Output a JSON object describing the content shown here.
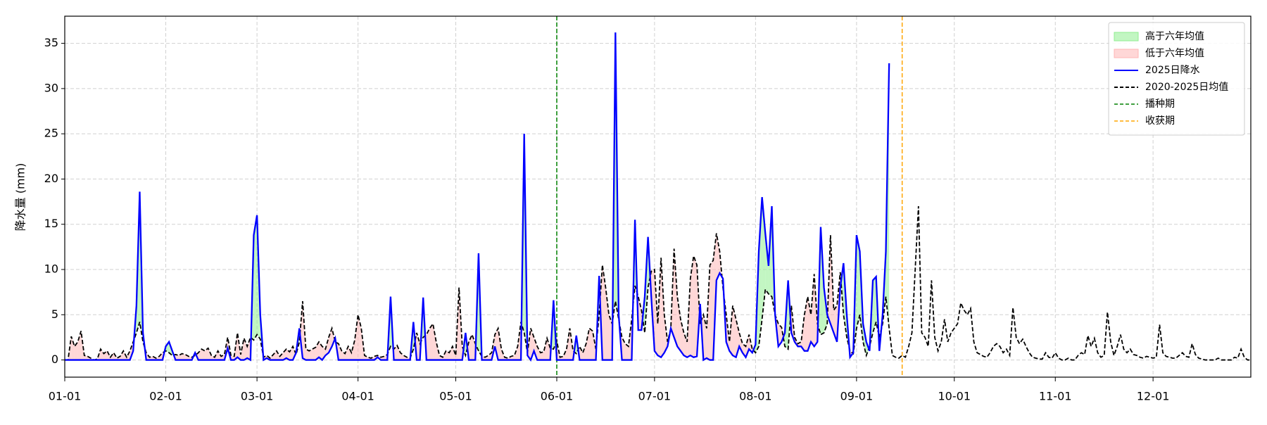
{
  "chart_data": {
    "type": "line",
    "ylabel": "降水量 (mm)",
    "x": [
      "01-01",
      "01-02",
      "01-03",
      "01-04",
      "01-05",
      "01-06",
      "01-07",
      "01-08",
      "01-09",
      "01-10",
      "01-11",
      "01-12",
      "01-13",
      "01-14",
      "01-15",
      "01-16",
      "01-17",
      "01-18",
      "01-19",
      "01-20",
      "01-21",
      "01-22",
      "01-23",
      "01-24",
      "01-25",
      "01-26",
      "01-27",
      "01-28",
      "01-29",
      "01-30",
      "01-31",
      "02-01",
      "02-02",
      "02-03",
      "02-04",
      "02-05",
      "02-06",
      "02-07",
      "02-08",
      "02-09",
      "02-10",
      "02-11",
      "02-12",
      "02-13",
      "02-14",
      "02-15",
      "02-16",
      "02-17",
      "02-18",
      "02-19",
      "02-20",
      "02-21",
      "02-22",
      "02-23",
      "02-24",
      "02-25",
      "02-26",
      "02-27",
      "02-28",
      "03-01",
      "03-02",
      "03-03",
      "03-04",
      "03-05",
      "03-06",
      "03-07",
      "03-08",
      "03-09",
      "03-10",
      "03-11",
      "03-12",
      "03-13",
      "03-14",
      "03-15",
      "03-16",
      "03-17",
      "03-18",
      "03-19",
      "03-20",
      "03-21",
      "03-22",
      "03-23",
      "03-24",
      "03-25",
      "03-26",
      "03-27",
      "03-28",
      "03-29",
      "03-30",
      "03-31",
      "04-01",
      "04-02",
      "04-03",
      "04-04",
      "04-05",
      "04-06",
      "04-07",
      "04-08",
      "04-09",
      "04-10",
      "04-11",
      "04-12",
      "04-13",
      "04-14",
      "04-15",
      "04-16",
      "04-17",
      "04-18",
      "04-19",
      "04-20",
      "04-21",
      "04-22",
      "04-23",
      "04-24",
      "04-25",
      "04-26",
      "04-27",
      "04-28",
      "04-29",
      "04-30",
      "05-01",
      "05-02",
      "05-03",
      "05-04",
      "05-05",
      "05-06",
      "05-07",
      "05-08",
      "05-09",
      "05-10",
      "05-11",
      "05-12",
      "05-13",
      "05-14",
      "05-15",
      "05-16",
      "05-17",
      "05-18",
      "05-19",
      "05-20",
      "05-21",
      "05-22",
      "05-23",
      "05-24",
      "05-25",
      "05-26",
      "05-27",
      "05-28",
      "05-29",
      "05-30",
      "05-31",
      "06-01",
      "06-02",
      "06-03",
      "06-04",
      "06-05",
      "06-06",
      "06-07",
      "06-08",
      "06-09",
      "06-10",
      "06-11",
      "06-12",
      "06-13",
      "06-14",
      "06-15",
      "06-16",
      "06-17",
      "06-18",
      "06-19",
      "06-20",
      "06-21",
      "06-22",
      "06-23",
      "06-24",
      "06-25",
      "06-26",
      "06-27",
      "06-28",
      "06-29",
      "06-30",
      "07-01",
      "07-02",
      "07-03",
      "07-04",
      "07-05",
      "07-06",
      "07-07",
      "07-08",
      "07-09",
      "07-10",
      "07-11",
      "07-12",
      "07-13",
      "07-14",
      "07-15",
      "07-16",
      "07-17",
      "07-18",
      "07-19",
      "07-20",
      "07-21",
      "07-22",
      "07-23",
      "07-24",
      "07-25",
      "07-26",
      "07-27",
      "07-28",
      "07-29",
      "07-30",
      "07-31",
      "08-01",
      "08-02",
      "08-03",
      "08-04",
      "08-05",
      "08-06",
      "08-07",
      "08-08",
      "08-09",
      "08-10",
      "08-11",
      "08-12",
      "08-13",
      "08-14",
      "08-15",
      "08-16",
      "08-17",
      "08-18",
      "08-19",
      "08-20",
      "08-21",
      "08-22",
      "08-23",
      "08-24",
      "08-25",
      "08-26",
      "08-27",
      "08-28",
      "08-29",
      "08-30",
      "08-31",
      "09-01",
      "09-02",
      "09-03",
      "09-04",
      "09-05",
      "09-06",
      "09-07",
      "09-08",
      "09-09",
      "09-10",
      "09-11",
      "09-12",
      "09-13",
      "09-14",
      "09-15",
      "09-16",
      "09-17",
      "09-18",
      "09-19",
      "09-20",
      "09-21",
      "09-22",
      "09-23",
      "09-24",
      "09-25",
      "09-26",
      "09-27",
      "09-28",
      "09-29",
      "09-30",
      "10-01",
      "10-02",
      "10-03",
      "10-04",
      "10-05",
      "10-06",
      "10-07",
      "10-08",
      "10-09",
      "10-10",
      "10-11",
      "10-12",
      "10-13",
      "10-14",
      "10-15",
      "10-16",
      "10-17",
      "10-18",
      "10-19",
      "10-20",
      "10-21",
      "10-22",
      "10-23",
      "10-24",
      "10-25",
      "10-26",
      "10-27",
      "10-28",
      "10-29",
      "10-30",
      "10-31",
      "11-01",
      "11-02",
      "11-03",
      "11-04",
      "11-05",
      "11-06",
      "11-07",
      "11-08",
      "11-09",
      "11-10",
      "11-11",
      "11-12",
      "11-13",
      "11-14",
      "11-15",
      "11-16",
      "11-17",
      "11-18",
      "11-19",
      "11-20",
      "11-21",
      "11-22",
      "11-23",
      "11-24",
      "11-25",
      "11-26",
      "11-27",
      "11-28",
      "11-29",
      "11-30",
      "12-01",
      "12-02",
      "12-03",
      "12-04",
      "12-05",
      "12-06",
      "12-07",
      "12-08",
      "12-09",
      "12-10",
      "12-11",
      "12-12",
      "12-13",
      "12-14",
      "12-15",
      "12-16",
      "12-17",
      "12-18",
      "12-19",
      "12-20",
      "12-21",
      "12-22",
      "12-23",
      "12-24",
      "12-25",
      "12-26",
      "12-27",
      "12-28",
      "12-29",
      "12-30",
      "12-31"
    ],
    "series": [
      {
        "name": "2025日降水",
        "color": "#0000ff",
        "style": "solid",
        "values": [
          0,
          0,
          0,
          0,
          0,
          0,
          0,
          0,
          0,
          0,
          0,
          0,
          0,
          0,
          0,
          0,
          0,
          0,
          0,
          0,
          0,
          1,
          6,
          18.6,
          3,
          0,
          0,
          0,
          0,
          0,
          0,
          1.5,
          2,
          1,
          0,
          0,
          0,
          0,
          0,
          0,
          0.8,
          0,
          0,
          0,
          0,
          0,
          0,
          0,
          0,
          0,
          1.3,
          0,
          0,
          0.3,
          0,
          0,
          0.2,
          0,
          13.8,
          16,
          5,
          0,
          0.2,
          0,
          0,
          0,
          0,
          0,
          0.2,
          0,
          0,
          0.8,
          3.5,
          0.2,
          0,
          0,
          0,
          0,
          0.3,
          0,
          0.5,
          0.8,
          1.5,
          2.4,
          0,
          0,
          0,
          0,
          0,
          0,
          0,
          0,
          0,
          0,
          0,
          0,
          0.3,
          0,
          0,
          0,
          7,
          0,
          0,
          0,
          0,
          0,
          0,
          4.2,
          0,
          0,
          6.9,
          0,
          0,
          0,
          0,
          0,
          0,
          0,
          0,
          0,
          0,
          0,
          0,
          3,
          0,
          0,
          0,
          11.8,
          0,
          0,
          0,
          0,
          1.5,
          0,
          0,
          0,
          0,
          0,
          0,
          0,
          0,
          25,
          0.5,
          0,
          1,
          0,
          0,
          0,
          0,
          0,
          6.6,
          0,
          0,
          0,
          0,
          0,
          0,
          2.7,
          0,
          0,
          0,
          0,
          0,
          0,
          9.3,
          0,
          0,
          0,
          0,
          36.2,
          5,
          0,
          0,
          0,
          0,
          15.5,
          3.3,
          3.3,
          7,
          13.6,
          7,
          1,
          0.5,
          0.3,
          0.8,
          1.5,
          3.5,
          2.5,
          1.5,
          1,
          0.5,
          0.3,
          0.5,
          0.3,
          0.4,
          6.2,
          0,
          0.2,
          0,
          0,
          8.8,
          9.6,
          9,
          2,
          1,
          0.5,
          0.3,
          1.5,
          0.8,
          0.3,
          1.2,
          0.8,
          1.7,
          12,
          18,
          14,
          10.4,
          17,
          5,
          1.5,
          2,
          3,
          8.8,
          3,
          2,
          1.5,
          1.5,
          1,
          1,
          2,
          1.5,
          2,
          14.7,
          8,
          5,
          4,
          3,
          2,
          8,
          10.7,
          5,
          0.3,
          0.8,
          13.8,
          12,
          4,
          2,
          1,
          8.8,
          9.2,
          1,
          5,
          12,
          32.8,
          null,
          null,
          null,
          null,
          null,
          null,
          null,
          null,
          null,
          null,
          null,
          null,
          null,
          null,
          null,
          null,
          null,
          null,
          null,
          null,
          null,
          null,
          null,
          null,
          null,
          null,
          null,
          null,
          null,
          null,
          null,
          null,
          null,
          null,
          null,
          null,
          null,
          null,
          null,
          null,
          null,
          null,
          null,
          null,
          null,
          null,
          null,
          null,
          null,
          null,
          null,
          null,
          null,
          null,
          null,
          null,
          null,
          null,
          null,
          null,
          null,
          null,
          null,
          null,
          null,
          null,
          null,
          null,
          null,
          null,
          null,
          null,
          null,
          null,
          null,
          null,
          null,
          null,
          null,
          null,
          null,
          null,
          null,
          null,
          null,
          null,
          null,
          null,
          null,
          null,
          null,
          null,
          null,
          null,
          null,
          null,
          null,
          null,
          null,
          null,
          null,
          null,
          null,
          null,
          null,
          null,
          null,
          null,
          null,
          null,
          null
        ]
      },
      {
        "name": "2020-2025日均值",
        "color": "#000000",
        "style": "dashed",
        "values": [
          0,
          0,
          2.6,
          1.5,
          2,
          3.2,
          0.5,
          0.4,
          0.2,
          0,
          0.1,
          1.2,
          0.7,
          1,
          0.3,
          0.8,
          0.2,
          0.4,
          1,
          0.3,
          1,
          2,
          3,
          4.2,
          2,
          0.8,
          0.3,
          0.4,
          0.2,
          0.4,
          0.8,
          1,
          0.8,
          0.5,
          0.6,
          0.5,
          0.7,
          0.6,
          0.4,
          0.3,
          0.5,
          0.8,
          1.2,
          1,
          1.3,
          0.5,
          0.3,
          1,
          0.4,
          0.6,
          2.5,
          0.5,
          0.4,
          3,
          0.6,
          2.4,
          1.5,
          2.5,
          2.2,
          2.8,
          2.3,
          0.3,
          0.5,
          0.2,
          0.6,
          1,
          0.4,
          0.8,
          1.2,
          0.9,
          1.5,
          0.6,
          2,
          6.5,
          1.2,
          1,
          1.2,
          1.4,
          2,
          1.5,
          1.2,
          2.5,
          3.5,
          2,
          1.8,
          1,
          0.7,
          1.5,
          0.8,
          2.2,
          5,
          3.5,
          0.5,
          0.3,
          0.2,
          0.4,
          0.5,
          0.3,
          0.4,
          0.6,
          1.5,
          1.2,
          1.6,
          0.8,
          0.5,
          0.3,
          0.2,
          1.2,
          3,
          1.8,
          2.5,
          2.8,
          3.5,
          4,
          2,
          0.5,
          0.3,
          1,
          0.8,
          1.5,
          0.5,
          8,
          1.5,
          0.5,
          2,
          2.8,
          1.8,
          1,
          0.4,
          0.3,
          0.5,
          0.8,
          2.8,
          3.5,
          1.2,
          0.3,
          0.2,
          0.4,
          0.5,
          1.5,
          4.2,
          3,
          0.8,
          3.5,
          2.5,
          1.5,
          0.8,
          0.9,
          2.4,
          1.3,
          1.2,
          2.1,
          0.3,
          0.4,
          1.2,
          3.5,
          1,
          0.7,
          1.5,
          0.8,
          1.8,
          3.5,
          3.2,
          1.2,
          5,
          10.5,
          8,
          5,
          4,
          6.5,
          4.5,
          2.5,
          1.8,
          1.5,
          4.5,
          8.2,
          7,
          5.5,
          3,
          8,
          9.8,
          10,
          4,
          11.3,
          5,
          2,
          3.5,
          12.3,
          7,
          4.5,
          3,
          2,
          9,
          11.5,
          10.5,
          4,
          5,
          3.5,
          10.5,
          11,
          14,
          12,
          8,
          5,
          2,
          6,
          4.5,
          3,
          1.8,
          1.5,
          2.8,
          1.2,
          0.8,
          1.5,
          4.5,
          7.8,
          7.3,
          7,
          5,
          4,
          3.6,
          1.5,
          1.2,
          6,
          2.5,
          1.8,
          2,
          5,
          7,
          5,
          9.5,
          4,
          2.8,
          3,
          4,
          13.8,
          5.5,
          6,
          9.7,
          5,
          2.5,
          1,
          0.7,
          3.5,
          5,
          2,
          0.5,
          1.5,
          3,
          4.2,
          2.5,
          4,
          7,
          3.5,
          0.5,
          0.3,
          0.2,
          0.5,
          0.3,
          1.5,
          3,
          10,
          17,
          3,
          2.5,
          1.5,
          8.8,
          2.5,
          1,
          2,
          4.5,
          2,
          3,
          3.5,
          4,
          6.3,
          5.5,
          5,
          5.7,
          2,
          0.8,
          0.6,
          0.4,
          0.3,
          0.8,
          1.5,
          1.8,
          1.5,
          0.8,
          1.2,
          0.5,
          5.8,
          2.5,
          1.8,
          2.3,
          1.5,
          0.8,
          0.3,
          0.2,
          0.1,
          0.1,
          0.8,
          0.3,
          0.2,
          0.8,
          0.2,
          0,
          0,
          0.2,
          0,
          0,
          0.5,
          0.8,
          0.6,
          2.7,
          1.5,
          2.4,
          0.8,
          0.3,
          0.5,
          5.3,
          2,
          0.5,
          1.5,
          2.8,
          1.2,
          0.8,
          1.2,
          0.6,
          0.5,
          0.3,
          0.2,
          0.4,
          0.3,
          0.2,
          0.3,
          3.9,
          0.8,
          0.4,
          0.3,
          0.2,
          0.2,
          0.5,
          0.8,
          0.4,
          0.3,
          1.8,
          0.6,
          0.2,
          0.1,
          0,
          0,
          0,
          0,
          0.2,
          0,
          0,
          0,
          0,
          0.3,
          0.2,
          1.2,
          0.3,
          0,
          0
        ]
      }
    ],
    "fill_above": {
      "name": "高于六年均值",
      "color": "#90ee90"
    },
    "fill_below": {
      "name": "低于六年均值",
      "color": "#ffb6b6"
    },
    "vlines": [
      {
        "name": "播种期",
        "x": "06-01",
        "color": "#008000"
      },
      {
        "name": "收获期",
        "x": "09-15",
        "color": "#ffa500"
      }
    ],
    "xlim": [
      "01-01",
      "12-31"
    ],
    "xticks": [
      "01-01",
      "02-01",
      "03-01",
      "04-01",
      "05-01",
      "06-01",
      "07-01",
      "08-01",
      "09-01",
      "10-01",
      "11-01",
      "12-01"
    ],
    "ylim": [
      -1.9,
      38
    ],
    "yticks": [
      0,
      5,
      10,
      15,
      20,
      25,
      30,
      35
    ],
    "grid": true,
    "legend": "upper right"
  }
}
